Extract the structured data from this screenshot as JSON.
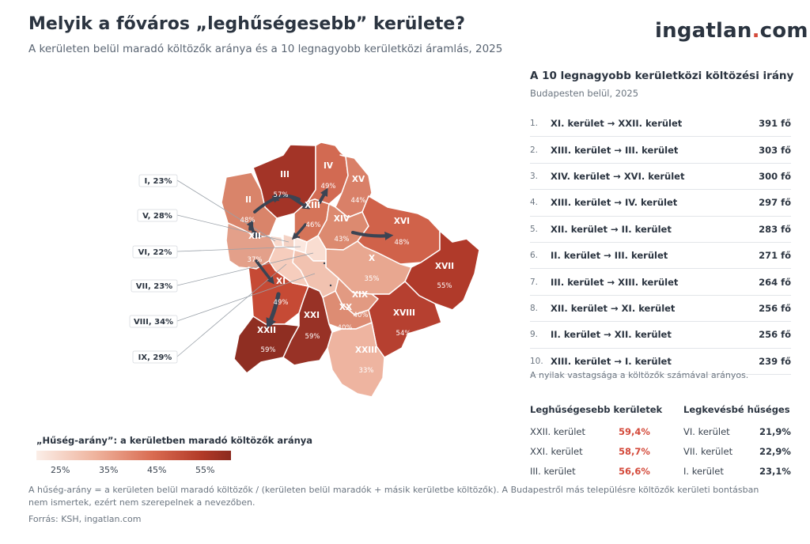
{
  "header": {
    "title": "Melyik a főváros „leghűségesebb” kerülete?",
    "subtitle": "A kerületen belül maradó költözők aránya és a 10 legnagyobb kerületközi áramlás, 2025",
    "logo_part1": "ingatlan",
    "logo_dot": ".",
    "logo_part2": "com"
  },
  "colors": {
    "accent": "#d44a3b",
    "text": "#2b3440",
    "muted": "#6b7580",
    "arrow": "#3b4453"
  },
  "map": {
    "districts": [
      {
        "id": "III",
        "name": "III",
        "value": "57%",
        "color": "#a33427"
      },
      {
        "id": "II",
        "name": "II",
        "value": "48%",
        "color": "#d9846a"
      },
      {
        "id": "IV",
        "name": "IV",
        "value": "49%",
        "color": "#d26a52"
      },
      {
        "id": "XV",
        "name": "XV",
        "value": "44%",
        "color": "#d98068"
      },
      {
        "id": "XIII",
        "name": "XIII",
        "value": "46%",
        "color": "#d57459"
      },
      {
        "id": "XIV",
        "name": "XIV",
        "value": "43%",
        "color": "#dc8a70"
      },
      {
        "id": "XVI",
        "name": "XVI",
        "value": "48%",
        "color": "#d0624a"
      },
      {
        "id": "XII",
        "name": "XII",
        "value": "",
        "color": "#e3a08a"
      },
      {
        "id": "X",
        "name": "X",
        "value": "35%",
        "color": "#e8a790"
      },
      {
        "id": "XVII",
        "name": "XVII",
        "value": "55%",
        "color": "#b03a2a"
      },
      {
        "id": "XI",
        "name": "XI",
        "value": "49%",
        "color": "#c64a35"
      },
      {
        "id": "XIX",
        "name": "XIX",
        "value": "40%",
        "color": "#e29a82"
      },
      {
        "id": "XX",
        "name": "XX",
        "value": "40%",
        "color": "#dd8c73"
      },
      {
        "id": "XVIII",
        "name": "XVIII",
        "value": "54%",
        "color": "#b64030"
      },
      {
        "id": "XXI",
        "name": "XXI",
        "value": "59%",
        "color": "#983226"
      },
      {
        "id": "XXII",
        "name": "XXII",
        "value": "59%",
        "color": "#8f2e22"
      },
      {
        "id": "XXIII",
        "name": "XXIII",
        "value": "33%",
        "color": "#eeb4a0"
      },
      {
        "id": "I",
        "name": "",
        "value": "",
        "color": "#f8d9cc"
      },
      {
        "id": "V",
        "name": "",
        "value": "",
        "color": "#f4d2c4"
      },
      {
        "id": "VI",
        "name": "",
        "value": "",
        "color": "#fbe7df"
      },
      {
        "id": "VII",
        "name": "",
        "value": "",
        "color": "#f9ddd1"
      },
      {
        "id": "VIII",
        "name": "",
        "value": "",
        "color": "#f1c2b0"
      },
      {
        "id": "IX",
        "name": "",
        "value": "",
        "color": "#f6cdbd"
      }
    ],
    "callouts": [
      {
        "id": "I",
        "label": "I,  23%"
      },
      {
        "id": "V",
        "label": "V,  28%"
      },
      {
        "id": "VI",
        "label": "VI,  22%"
      },
      {
        "id": "VII",
        "label": "VII,  23%"
      },
      {
        "id": "VIII",
        "label": "VIII,  34%"
      },
      {
        "id": "IX",
        "label": "IX,  29%"
      }
    ],
    "extra_label": "37%"
  },
  "flows": {
    "title": "A 10 legnagyobb kerületközi költözési irány",
    "subtitle": "Budapesten belül, 2025",
    "items": [
      {
        "rank": "1.",
        "route": "XI. kerület → XXII. kerület",
        "value": "391 fő"
      },
      {
        "rank": "2.",
        "route": "XIII. kerület → III. kerület",
        "value": "303 fő"
      },
      {
        "rank": "3.",
        "route": "XIV. kerület → XVI. kerület",
        "value": "300 fő"
      },
      {
        "rank": "4.",
        "route": "XIII. kerület → IV. kerület",
        "value": "297 fő"
      },
      {
        "rank": "5.",
        "route": "XII. kerület → II. kerület",
        "value": "283 fő"
      },
      {
        "rank": "6.",
        "route": "II. kerület → III. kerület",
        "value": "271 fő"
      },
      {
        "rank": "7.",
        "route": "III. kerület → XIII. kerület",
        "value": "264 fő"
      },
      {
        "rank": "8.",
        "route": "XII. kerület → XI. kerület",
        "value": "256 fő"
      },
      {
        "rank": "9.",
        "route": "II. kerület → XII. kerület",
        "value": "256 fő"
      },
      {
        "rank": "10.",
        "route": "XIII. kerület → I. kerület",
        "value": "239 fő"
      }
    ],
    "note": "A nyilak vastagsága a költözők számával arányos."
  },
  "rankings": {
    "most_title": "Leghűségesebb kerületek",
    "least_title": "Legkevésbé hűséges",
    "most": [
      {
        "name": "XXII. kerület",
        "value": "59,4%"
      },
      {
        "name": "XXI. kerület",
        "value": "58,7%"
      },
      {
        "name": "III. kerület",
        "value": "56,6%"
      }
    ],
    "least": [
      {
        "name": "VI. kerület",
        "value": "21,9%"
      },
      {
        "name": "VII. kerület",
        "value": "22,9%"
      },
      {
        "name": "I. kerület",
        "value": "23,1%"
      }
    ]
  },
  "legend": {
    "title": "„Hűség-arány”: a kerületben maradó költözők aránya",
    "ticks": [
      "25%",
      "35%",
      "45%",
      "55%"
    ]
  },
  "footer": {
    "note": "A hűség-arány = a kerületen belül maradó költözők / (kerületen belül maradók + másik kerületbe költözők). A Budapestről más településre költözők kerületi bontásban nem ismertek, ezért nem szerepelnek a nevezőben.",
    "source": "Forrás: KSH, ingatlan.com"
  }
}
